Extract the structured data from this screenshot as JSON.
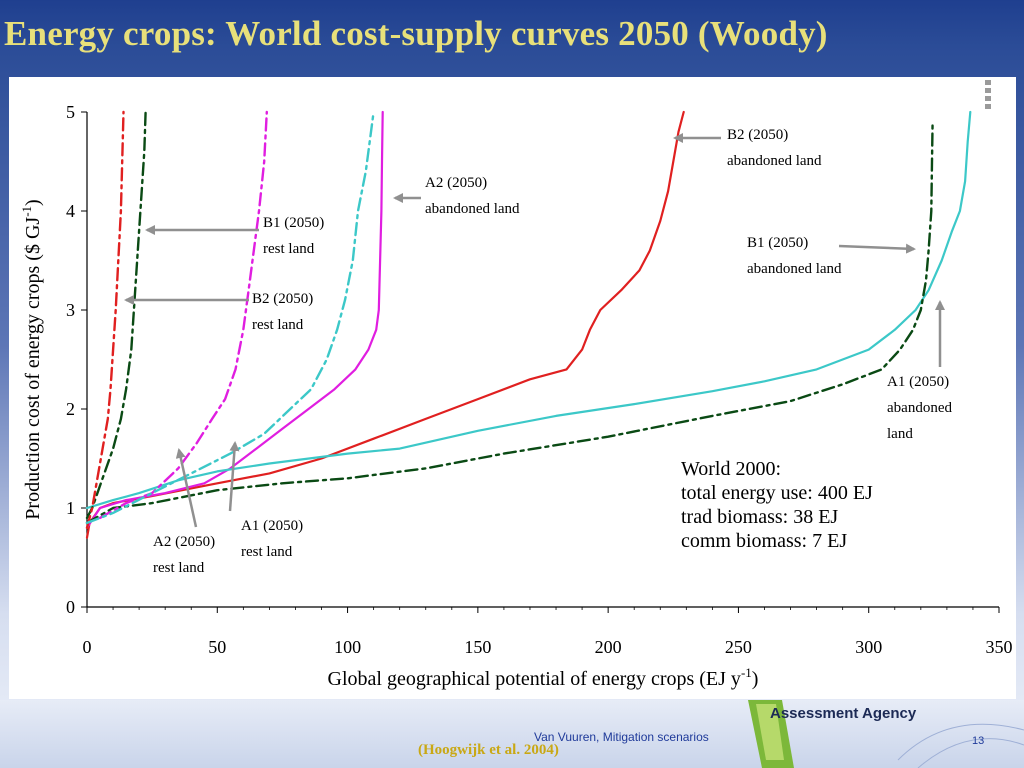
{
  "slide": {
    "title": "Energy crops: World cost-supply curves 2050 (Woody)",
    "footer_author": "Van Vuuren, Mitigation scenarios",
    "page_number": "13",
    "citation": "(Hoogwijk et al. 2004)",
    "logo_text": "Assessment Agency"
  },
  "colors": {
    "red": "#e02020",
    "magenta": "#e01ee0",
    "cyan": "#3cc8c8",
    "darkgreen": "#0a4a14",
    "arrow": "#909090",
    "title": "#e8e07a"
  },
  "chart_data": {
    "type": "line",
    "xlabel": "Global geographical potential of energy crops  (EJ y-1)",
    "ylabel": "Production cost of energy crops ($ GJ-1)",
    "xlim": [
      0,
      350
    ],
    "ylim": [
      0,
      5
    ],
    "xticks": [
      0,
      50,
      100,
      150,
      200,
      250,
      300,
      350
    ],
    "yticks": [
      0,
      1,
      2,
      3,
      4,
      5
    ],
    "grid": false,
    "series": [
      {
        "color": "red",
        "style": "solid",
        "points": [
          [
            0,
            0.7
          ],
          [
            1,
            0.85
          ],
          [
            5,
            1.0
          ],
          [
            10,
            1.05
          ],
          [
            25,
            1.12
          ],
          [
            50,
            1.25
          ],
          [
            70,
            1.35
          ],
          [
            90,
            1.5
          ],
          [
            110,
            1.7
          ],
          [
            130,
            1.9
          ],
          [
            150,
            2.1
          ],
          [
            170,
            2.3
          ],
          [
            184,
            2.4
          ],
          [
            190,
            2.6
          ],
          [
            193,
            2.8
          ],
          [
            197,
            3.0
          ],
          [
            205,
            3.2
          ],
          [
            212,
            3.4
          ],
          [
            216,
            3.6
          ],
          [
            220,
            3.9
          ],
          [
            223,
            4.2
          ],
          [
            225,
            4.5
          ],
          [
            227,
            4.8
          ],
          [
            229,
            5.0
          ]
        ]
      },
      {
        "color": "magenta",
        "style": "solid",
        "points": [
          [
            0,
            0.8
          ],
          [
            5,
            1.0
          ],
          [
            15,
            1.08
          ],
          [
            30,
            1.15
          ],
          [
            45,
            1.25
          ],
          [
            55,
            1.4
          ],
          [
            65,
            1.6
          ],
          [
            75,
            1.8
          ],
          [
            85,
            2.0
          ],
          [
            95,
            2.2
          ],
          [
            103,
            2.4
          ],
          [
            108,
            2.6
          ],
          [
            111,
            2.8
          ],
          [
            112,
            3.0
          ],
          [
            112.5,
            3.5
          ],
          [
            113,
            4.0
          ],
          [
            113.2,
            4.5
          ],
          [
            113.5,
            5.0
          ]
        ]
      },
      {
        "color": "cyan",
        "style": "solid",
        "points": [
          [
            0,
            1.0
          ],
          [
            10,
            1.08
          ],
          [
            20,
            1.15
          ],
          [
            35,
            1.28
          ],
          [
            50,
            1.37
          ],
          [
            70,
            1.45
          ],
          [
            100,
            1.55
          ],
          [
            120,
            1.6
          ],
          [
            150,
            1.78
          ],
          [
            180,
            1.93
          ],
          [
            210,
            2.05
          ],
          [
            240,
            2.18
          ],
          [
            260,
            2.28
          ],
          [
            280,
            2.4
          ],
          [
            300,
            2.6
          ],
          [
            310,
            2.8
          ],
          [
            318,
            3.0
          ],
          [
            323,
            3.2
          ],
          [
            328,
            3.5
          ],
          [
            332,
            3.8
          ],
          [
            335,
            4.0
          ],
          [
            337,
            4.3
          ],
          [
            338,
            4.7
          ],
          [
            339,
            5.0
          ]
        ]
      },
      {
        "color": "darkgreen",
        "style": "dashdot",
        "points": [
          [
            0,
            0.85
          ],
          [
            10,
            1.0
          ],
          [
            25,
            1.05
          ],
          [
            50,
            1.18
          ],
          [
            75,
            1.25
          ],
          [
            100,
            1.3
          ],
          [
            130,
            1.4
          ],
          [
            160,
            1.55
          ],
          [
            200,
            1.72
          ],
          [
            240,
            1.93
          ],
          [
            270,
            2.08
          ],
          [
            290,
            2.25
          ],
          [
            305,
            2.4
          ],
          [
            312,
            2.6
          ],
          [
            317,
            2.8
          ],
          [
            320,
            3.0
          ],
          [
            322,
            3.3
          ],
          [
            323,
            3.6
          ],
          [
            324,
            4.0
          ],
          [
            324.3,
            4.5
          ],
          [
            324.5,
            4.9
          ]
        ]
      },
      {
        "color": "darkgreen",
        "style": "dashdot",
        "points": [
          [
            0,
            0.9
          ],
          [
            2,
            1.0
          ],
          [
            6,
            1.3
          ],
          [
            10,
            1.6
          ],
          [
            13,
            1.9
          ],
          [
            15,
            2.2
          ],
          [
            17,
            2.6
          ],
          [
            18,
            3.0
          ],
          [
            19,
            3.4
          ],
          [
            20,
            3.8
          ],
          [
            21,
            4.2
          ],
          [
            22,
            4.6
          ],
          [
            22.5,
            5.0
          ]
        ]
      },
      {
        "color": "red",
        "style": "dashdot",
        "points": [
          [
            0,
            0.8
          ],
          [
            2,
            1.0
          ],
          [
            4,
            1.3
          ],
          [
            6,
            1.6
          ],
          [
            8,
            1.9
          ],
          [
            9,
            2.2
          ],
          [
            10,
            2.6
          ],
          [
            11,
            3.0
          ],
          [
            12,
            3.5
          ],
          [
            13,
            4.0
          ],
          [
            13.5,
            4.5
          ],
          [
            14,
            5.0
          ]
        ]
      },
      {
        "color": "magenta",
        "style": "dashdot",
        "points": [
          [
            5,
            0.9
          ],
          [
            15,
            1.05
          ],
          [
            25,
            1.15
          ],
          [
            35,
            1.4
          ],
          [
            42,
            1.65
          ],
          [
            48,
            1.9
          ],
          [
            53,
            2.1
          ],
          [
            57,
            2.4
          ],
          [
            60,
            2.8
          ],
          [
            62,
            3.2
          ],
          [
            64,
            3.6
          ],
          [
            66,
            4.0
          ],
          [
            68,
            4.5
          ],
          [
            69,
            5.0
          ]
        ]
      },
      {
        "color": "cyan",
        "style": "dashdot",
        "points": [
          [
            0,
            0.85
          ],
          [
            10,
            0.95
          ],
          [
            25,
            1.15
          ],
          [
            40,
            1.35
          ],
          [
            55,
            1.55
          ],
          [
            68,
            1.75
          ],
          [
            78,
            2.0
          ],
          [
            86,
            2.2
          ],
          [
            92,
            2.5
          ],
          [
            96,
            2.8
          ],
          [
            99,
            3.1
          ],
          [
            102,
            3.5
          ],
          [
            104,
            4.0
          ],
          [
            107,
            4.4
          ],
          [
            110,
            5.0
          ]
        ]
      }
    ],
    "annotations": [
      {
        "lines": [
          "B2 (2050)",
          "abandoned  land"
        ]
      },
      {
        "lines": [
          "A2 (2050)",
          "abandoned  land"
        ]
      },
      {
        "lines": [
          "B1 (2050)",
          "rest land"
        ]
      },
      {
        "lines": [
          "B1 (2050)",
          "abandoned  land"
        ]
      },
      {
        "lines": [
          "B2 (2050)",
          "rest land"
        ]
      },
      {
        "lines": [
          "A1 (2050)",
          "abandoned",
          " land"
        ]
      },
      {
        "lines": [
          "A1 (2050)",
          "rest land"
        ]
      },
      {
        "lines": [
          "A2 (2050)",
          "rest land"
        ]
      }
    ],
    "info_box": [
      "World 2000:",
      "total energy use: 400 EJ",
      "trad biomass: 38 EJ",
      "comm biomass: 7 EJ"
    ]
  }
}
